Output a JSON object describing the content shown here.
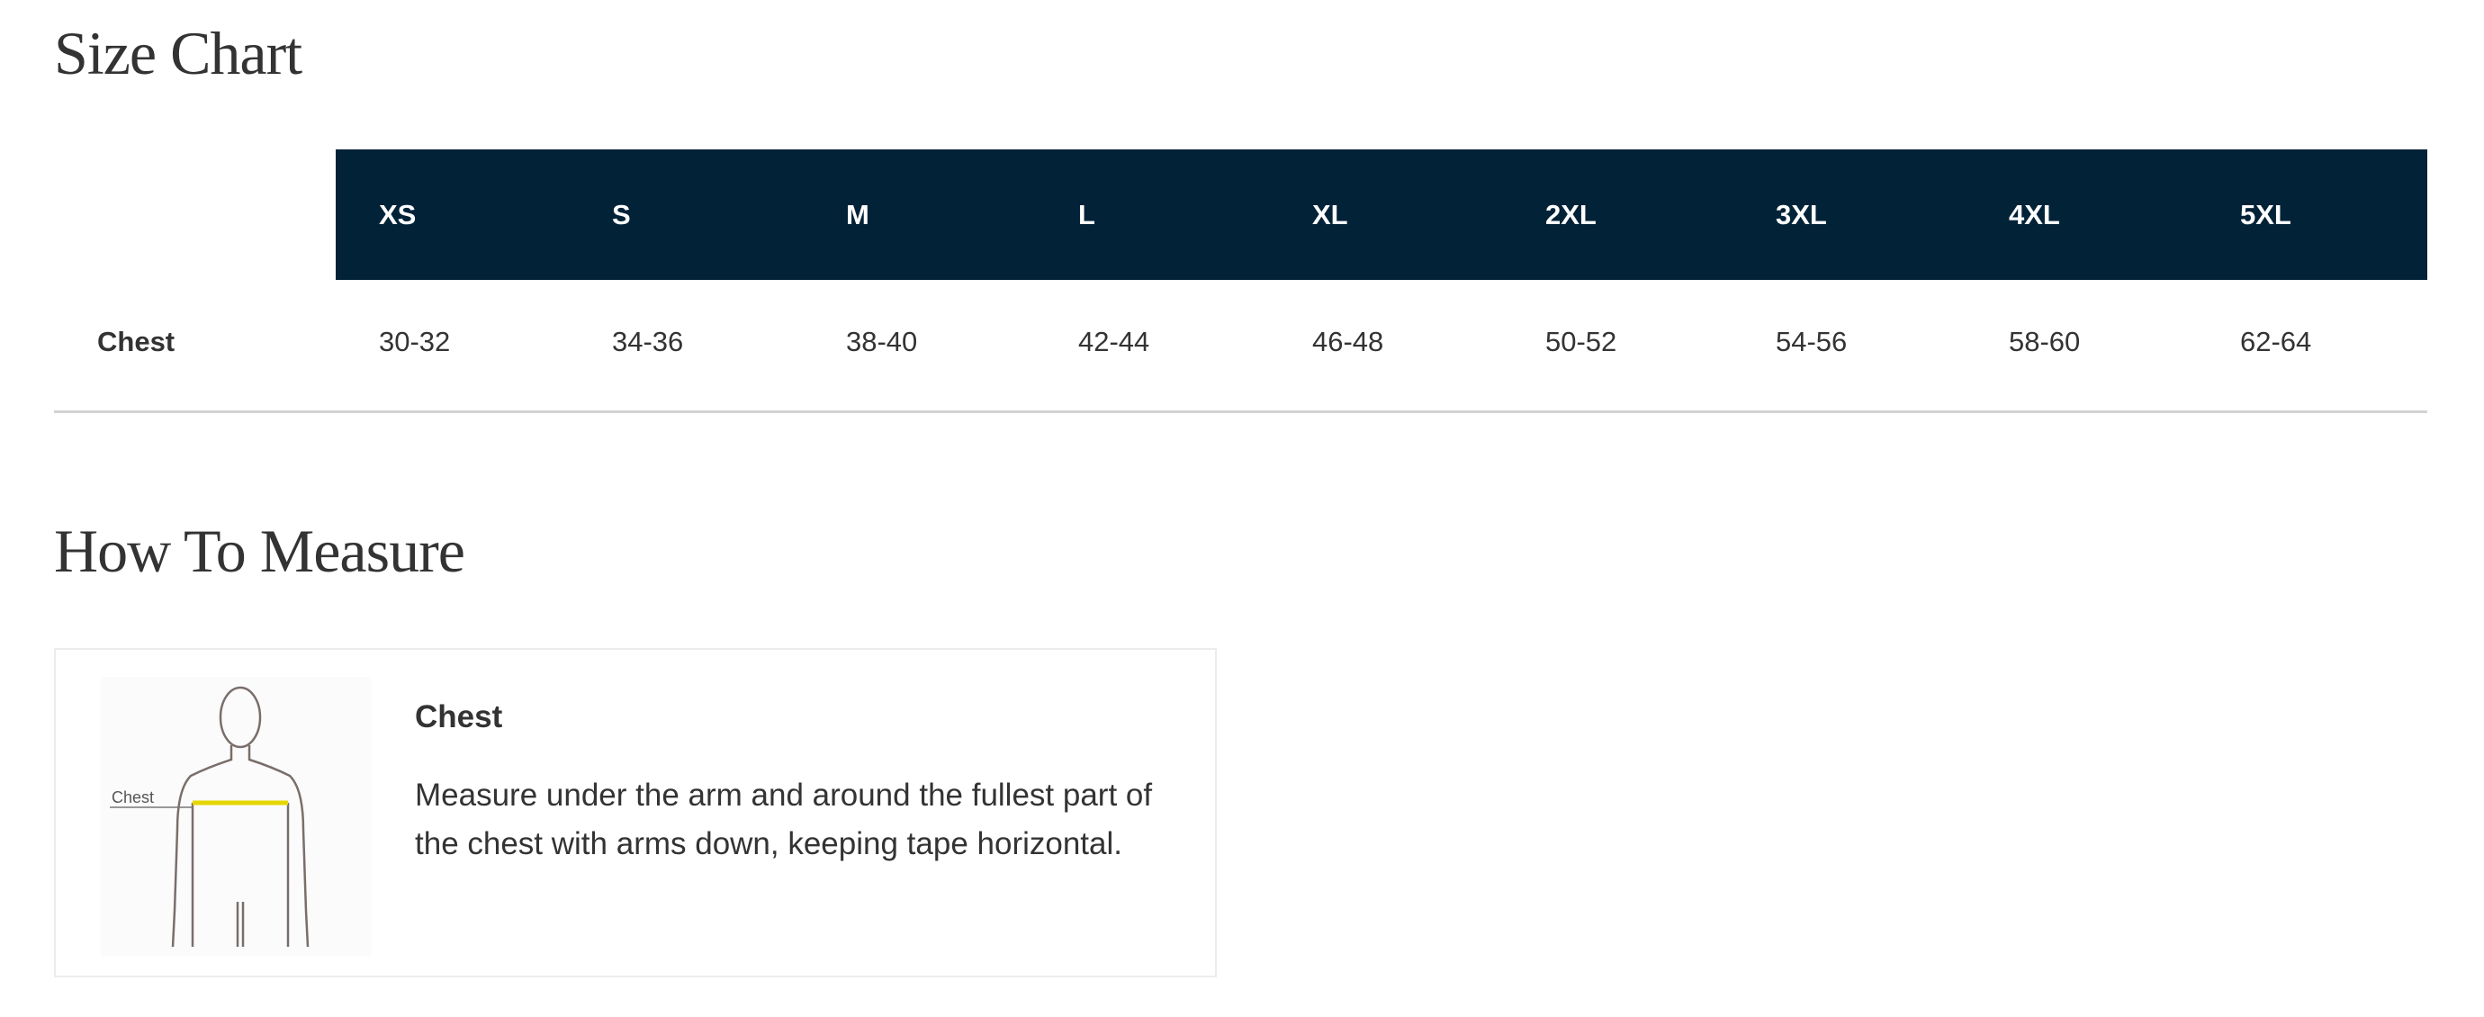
{
  "size_chart": {
    "title": "Size Chart",
    "sizes": [
      "XS",
      "S",
      "M",
      "L",
      "XL",
      "2XL",
      "3XL",
      "4XL",
      "5XL"
    ],
    "rows": [
      {
        "label": "Chest",
        "values": [
          "30-32",
          "34-36",
          "38-40",
          "42-44",
          "46-48",
          "50-52",
          "54-56",
          "58-60",
          "62-64"
        ]
      }
    ],
    "header_color": "#022238"
  },
  "how_to_measure": {
    "title": "How To Measure",
    "items": [
      {
        "figure_label": "Chest",
        "title": "Chest",
        "description": "Measure under the arm and around the fullest part of the chest with arms down, keeping tape horizontal."
      }
    ]
  }
}
